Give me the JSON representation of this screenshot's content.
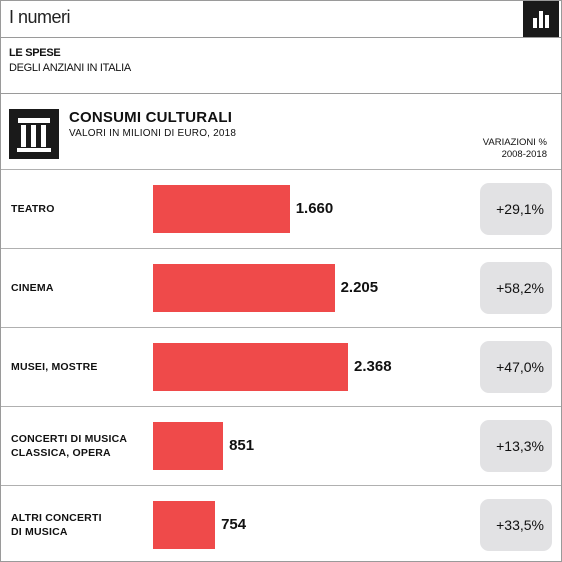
{
  "header": {
    "title": "I numeri",
    "icon": "bar-chart-icon"
  },
  "subheading": {
    "line1": "LE SPESE",
    "line2": "DEGLI ANZIANI IN ITALIA"
  },
  "panel": {
    "icon": "museum-building-icon",
    "title": "CONSUMI CULTURALI",
    "subtitle": "VALORI IN MILIONI DI EURO, 2018",
    "variation_header_line1": "VARIAZIONI %",
    "variation_header_line2": "2008-2018"
  },
  "colors": {
    "bar": "#ef4a4a",
    "badge": "#e2e2e4",
    "icon_bg": "#1a1a1a"
  },
  "chart_data": {
    "type": "bar",
    "orientation": "horizontal",
    "title": "CONSUMI CULTURALI",
    "subtitle": "VALORI IN MILIONI DI EURO, 2018",
    "categories": [
      [
        "TEATRO"
      ],
      [
        "CINEMA"
      ],
      [
        "MUSEI, MOSTRE"
      ],
      [
        "CONCERTI DI MUSICA",
        "CLASSICA, OPERA"
      ],
      [
        "ALTRI CONCERTI",
        "DI MUSICA"
      ]
    ],
    "values": [
      1660,
      2205,
      2368,
      851,
      754
    ],
    "value_labels": [
      "1.660",
      "2.205",
      "2.368",
      "851",
      "754"
    ],
    "variation_header": "VARIAZIONI % 2008-2018",
    "variations": [
      "+29,1%",
      "+58,2%",
      "+47,0%",
      "+13,3%",
      "+33,5%"
    ]
  }
}
